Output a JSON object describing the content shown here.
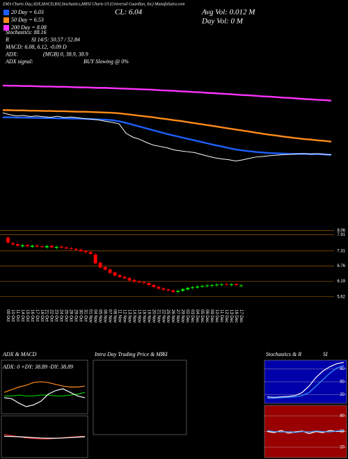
{
  "header": {
    "banner": "EMA Charts Day,ADX,MACD,RSI,Stochastics,MRSI Charts UI (Universal Guardian, Inc) MunafaSutra.com",
    "close": "CL: 6.04",
    "avg_vol": "Avg Vol: 0.012  M",
    "day_vol": "Day Vol: 0  M"
  },
  "indicators": [
    [
      "Stochastics: 88.16"
    ],
    [
      "R",
      "SI 14/5: 50.57 / 52.84"
    ],
    [
      "MACD: 6.08, 6.12, -0.09 D"
    ],
    [
      "ADX:",
      "(MGB) 0, 38.9, 38.9"
    ],
    [
      "ADX signal:",
      "BUY Slowing @ 0%"
    ]
  ],
  "chart_data": [
    {
      "type": "line",
      "ylim": [
        5.0,
        9.2
      ],
      "price_color": "#ffffff",
      "series": [
        {
          "name": "20 Day = 6.03",
          "color": "#1f5fff",
          "values": [
            7.45,
            7.45,
            7.44,
            7.44,
            7.43,
            7.43,
            7.42,
            7.42,
            7.41,
            7.41,
            7.4,
            7.4,
            7.39,
            7.38,
            7.37,
            7.36,
            7.34,
            7.3,
            7.24,
            7.17,
            7.1,
            7.03,
            6.96,
            6.89,
            6.82,
            6.76,
            6.7,
            6.64,
            6.58,
            6.52,
            6.46,
            6.4,
            6.35,
            6.29,
            6.24,
            6.2,
            6.17,
            6.14,
            6.12,
            6.1,
            6.09,
            6.08,
            6.07,
            6.07,
            6.07,
            6.06,
            6.06,
            6.05,
            6.03
          ]
        },
        {
          "name": "50 Day = 6.53",
          "color": "#ff8c1a",
          "values": [
            7.72,
            7.72,
            7.71,
            7.71,
            7.7,
            7.7,
            7.69,
            7.69,
            7.68,
            7.68,
            7.67,
            7.66,
            7.66,
            7.65,
            7.64,
            7.63,
            7.62,
            7.6,
            7.57,
            7.54,
            7.51,
            7.48,
            7.45,
            7.41,
            7.38,
            7.34,
            7.31,
            7.27,
            7.23,
            7.19,
            7.15,
            7.11,
            7.07,
            7.03,
            6.99,
            6.95,
            6.91,
            6.87,
            6.83,
            6.79,
            6.76,
            6.72,
            6.69,
            6.66,
            6.63,
            6.61,
            6.58,
            6.56,
            6.53
          ]
        },
        {
          "name": "200 Day = 8.08",
          "color": "#ff33ff",
          "values": [
            8.65,
            8.64,
            8.64,
            8.63,
            8.63,
            8.62,
            8.61,
            8.61,
            8.6,
            8.6,
            8.59,
            8.58,
            8.58,
            8.57,
            8.56,
            8.56,
            8.55,
            8.54,
            8.53,
            8.52,
            8.51,
            8.5,
            8.49,
            8.47,
            8.46,
            8.45,
            8.43,
            8.42,
            8.4,
            8.39,
            8.37,
            8.36,
            8.34,
            8.33,
            8.31,
            8.29,
            8.28,
            8.26,
            8.24,
            8.23,
            8.21,
            8.19,
            8.18,
            8.16,
            8.14,
            8.13,
            8.11,
            8.1,
            8.08
          ]
        }
      ]
    },
    {
      "type": "candlestick",
      "categories": [
        "09 Oct",
        "10 Oct",
        "11 Oct",
        "14 Oct",
        "15 Oct",
        "16 Oct",
        "17 Oct",
        "18 Oct",
        "21 Oct",
        "22 Oct",
        "23 Oct",
        "24 Oct",
        "25 Oct",
        "28 Oct",
        "29 Oct",
        "30 Oct",
        "31 Oct",
        "01 Nov",
        "04 Nov",
        "05 Nov",
        "06 Nov",
        "07 Nov",
        "08 Nov",
        "11 Nov",
        "12 Nov",
        "13 Nov",
        "14 Nov",
        "15 Nov",
        "18 Nov",
        "19 Nov",
        "20 Nov",
        "21 Nov",
        "22 Nov",
        "25 Nov",
        "26 Nov",
        "27 Nov",
        "29 Nov",
        "02 Dec",
        "03 Dec",
        "04 Dec",
        "05 Dec",
        "06 Dec",
        "09 Dec",
        "10 Dec",
        "11 Dec",
        "12 Dec",
        "13 Dec",
        "16 Dec",
        "17 Dec"
      ],
      "open": [
        7.8,
        7.6,
        7.56,
        7.48,
        7.53,
        7.46,
        7.51,
        7.48,
        7.44,
        7.5,
        7.42,
        7.47,
        7.44,
        7.41,
        7.39,
        7.36,
        7.31,
        7.27,
        7.18,
        6.88,
        6.72,
        6.63,
        6.52,
        6.42,
        6.36,
        6.31,
        6.24,
        6.19,
        6.16,
        6.13,
        6.06,
        5.99,
        5.93,
        5.89,
        5.86,
        5.8,
        5.84,
        5.89,
        5.94,
        5.96,
        5.99,
        6.01,
        6.02,
        6.04,
        6.06,
        6.09,
        6.05,
        6.09,
        6.02
      ],
      "close": [
        7.62,
        7.55,
        7.5,
        7.52,
        7.48,
        7.5,
        7.47,
        7.45,
        7.49,
        7.44,
        7.46,
        7.43,
        7.4,
        7.38,
        7.35,
        7.3,
        7.26,
        7.2,
        6.85,
        6.7,
        6.62,
        6.5,
        6.4,
        6.35,
        6.3,
        6.22,
        6.18,
        6.15,
        6.12,
        6.05,
        5.98,
        5.92,
        5.88,
        5.85,
        5.8,
        5.84,
        5.9,
        5.95,
        5.97,
        6.0,
        6.02,
        6.04,
        6.05,
        6.07,
        6.08,
        6.06,
        6.08,
        6.05,
        6.04
      ],
      "ylim": [
        5.28,
        8.1
      ],
      "yticks": [
        8.06,
        7.91,
        7.31,
        6.76,
        6.19,
        5.62
      ],
      "up_color": "#00ff00",
      "down_color": "#ff0000",
      "grid_color": "#b86b00"
    },
    {
      "type": "line",
      "title": "ADX & MACD",
      "label": "ADX: 0  +DY: 38.89  -DY: 38.89",
      "ylim": [
        0,
        60
      ],
      "series": [
        {
          "color": "#00cc00",
          "values": [
            20,
            20,
            21,
            20,
            20,
            21,
            21,
            20,
            20,
            21,
            22,
            24
          ]
        },
        {
          "color": "#ff8c1a",
          "values": [
            24,
            27,
            30,
            32,
            35,
            36,
            35,
            33,
            31,
            30,
            30,
            31
          ]
        },
        {
          "color": "#ffffff",
          "values": [
            18,
            17,
            12,
            8,
            10,
            14,
            22,
            26,
            28,
            24,
            20,
            18
          ]
        }
      ]
    },
    {
      "type": "line",
      "ylim": [
        -1,
        1
      ],
      "series": [
        {
          "color": "#ff3333",
          "values": [
            0.1,
            0.05,
            0,
            -0.05,
            -0.08,
            -0.1,
            -0.1,
            -0.08,
            -0.05,
            -0.02,
            0,
            0.02
          ]
        },
        {
          "color": "#ffffff",
          "values": [
            0.02,
            0.01,
            0,
            -0.02,
            -0.04,
            -0.06,
            -0.07,
            -0.07,
            -0.06,
            -0.04,
            -0.02,
            0
          ]
        }
      ]
    },
    {
      "type": "line",
      "title": "Intra Day Trading Price  & MR",
      "subtitle": "SI",
      "ylim": [
        0,
        1
      ],
      "series": []
    },
    {
      "type": "line",
      "title": "Stochastics & R",
      "subtitle": "SI",
      "ylim": [
        0,
        100
      ],
      "yticks": [
        80,
        50,
        20
      ],
      "background": "#0000aa",
      "series": [
        {
          "color": "#ffffff",
          "values": [
            15,
            14,
            15,
            16,
            18,
            25,
            40,
            60,
            75,
            85,
            92,
            95
          ]
        },
        {
          "color": "#3399ff",
          "values": [
            12,
            12,
            13,
            14,
            15,
            18,
            25,
            40,
            55,
            70,
            82,
            88
          ]
        }
      ]
    },
    {
      "type": "line",
      "ylim": [
        0,
        100
      ],
      "yticks": [
        80,
        50,
        20
      ],
      "background": "#990000",
      "series": [
        {
          "color": "#ffffff",
          "values": [
            50,
            48,
            52,
            47,
            49,
            51,
            46,
            50,
            48,
            52,
            50,
            51
          ]
        },
        {
          "color": "#3399ff",
          "values": [
            52,
            50,
            49,
            50,
            48,
            50,
            49,
            51,
            50,
            49,
            51,
            52
          ]
        }
      ]
    }
  ]
}
